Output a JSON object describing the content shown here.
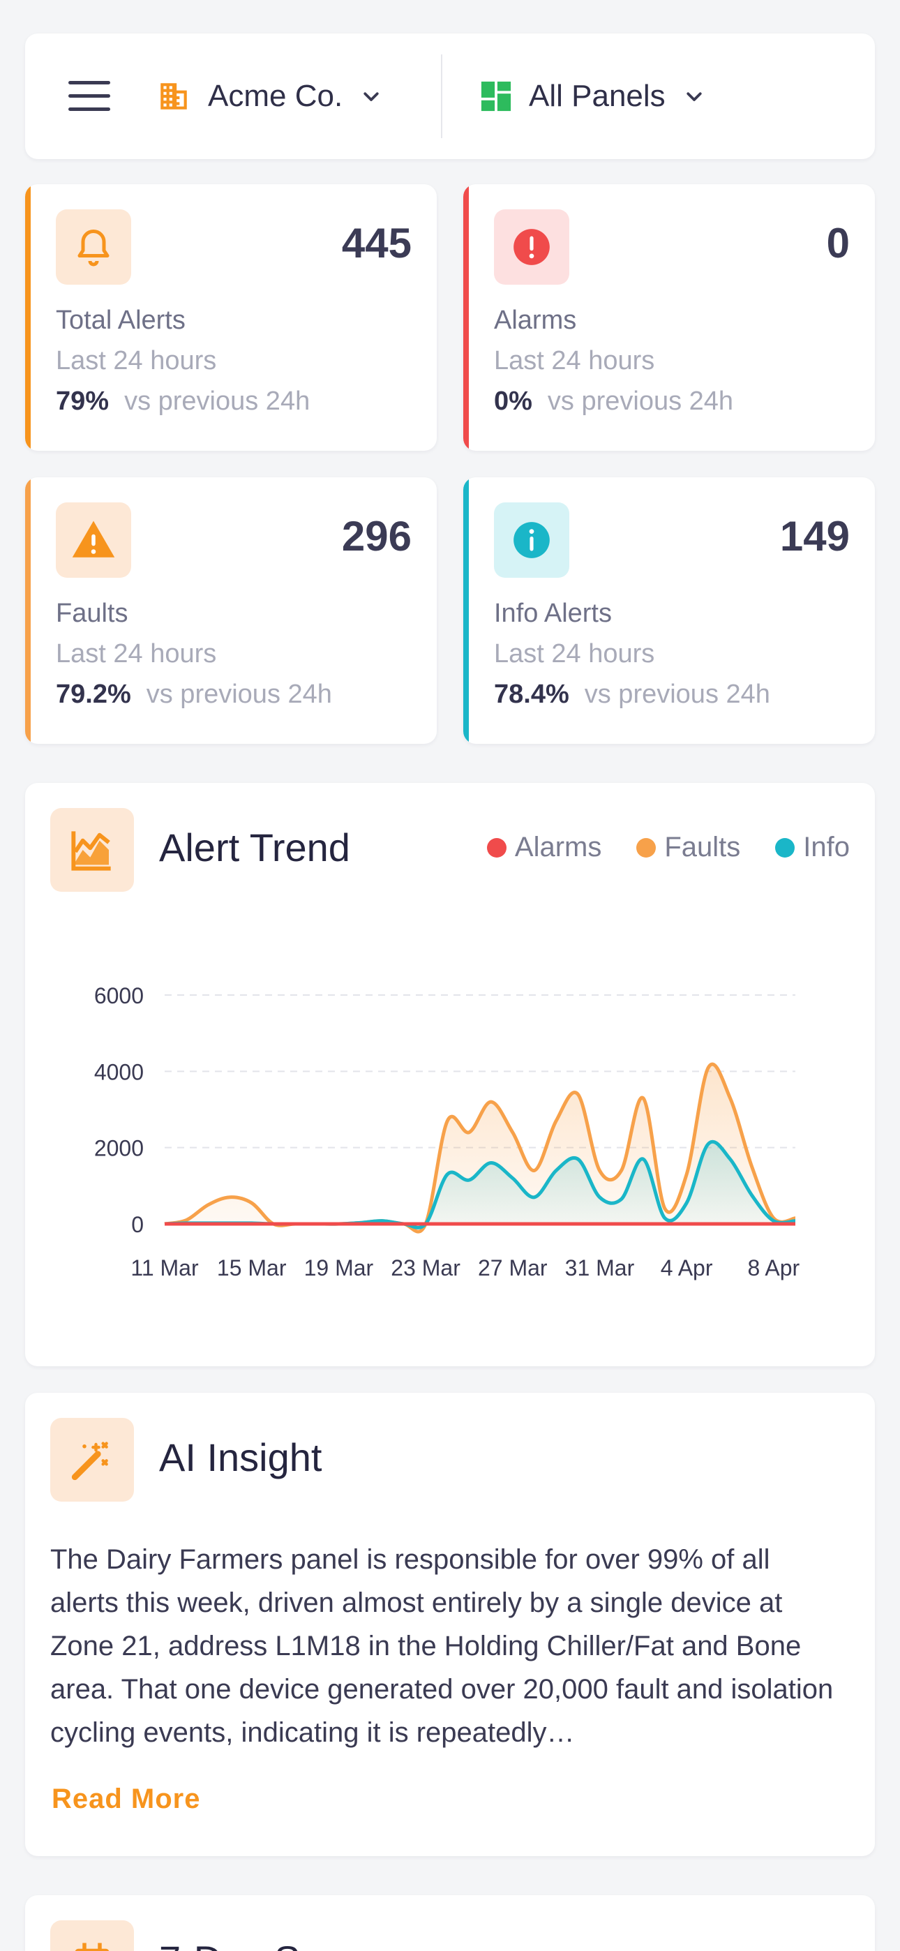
{
  "topbar": {
    "company": "Acme Co.",
    "panels": "All Panels"
  },
  "stats": [
    {
      "value": "445",
      "title": "Total Alerts",
      "period": "Last 24 hours",
      "change": "79%",
      "compare": "vs previous 24h",
      "color": "#f7941d"
    },
    {
      "value": "0",
      "title": "Alarms",
      "period": "Last 24 hours",
      "change": "0%",
      "compare": "vs previous 24h",
      "color": "#f04b4b"
    },
    {
      "value": "296",
      "title": "Faults",
      "period": "Last 24 hours",
      "change": "79.2%",
      "compare": "vs previous 24h",
      "color": "#f7941d"
    },
    {
      "value": "149",
      "title": "Info Alerts",
      "period": "Last 24 hours",
      "change": "78.4%",
      "compare": "vs previous 24h",
      "color": "#1ab6c8"
    }
  ],
  "trend": {
    "title": "Alert Trend",
    "legend": [
      {
        "name": "Alarms",
        "color": "#f04b4b"
      },
      {
        "name": "Faults",
        "color": "#f7a14a"
      },
      {
        "name": "Info",
        "color": "#1ab6c8"
      }
    ]
  },
  "chart_data": {
    "type": "line",
    "title": "Alert Trend",
    "x_tick_labels": [
      "11 Mar",
      "15 Mar",
      "19 Mar",
      "23 Mar",
      "27 Mar",
      "31 Mar",
      "4 Apr",
      "8 Apr"
    ],
    "y_ticks": [
      0,
      2000,
      4000,
      6000
    ],
    "ylim": [
      0,
      6000
    ],
    "grid": true,
    "legend_position": "top-right",
    "x": [
      "11 Mar",
      "12 Mar",
      "13 Mar",
      "14 Mar",
      "15 Mar",
      "16 Mar",
      "17 Mar",
      "18 Mar",
      "19 Mar",
      "20 Mar",
      "21 Mar",
      "22 Mar",
      "23 Mar",
      "24 Mar",
      "25 Mar",
      "26 Mar",
      "27 Mar",
      "28 Mar",
      "29 Mar",
      "30 Mar",
      "31 Mar",
      "1 Apr",
      "2 Apr",
      "3 Apr",
      "4 Apr",
      "5 Apr",
      "6 Apr",
      "7 Apr",
      "8 Apr",
      "9 Apr"
    ],
    "series": [
      {
        "name": "Alarms",
        "color": "#f04b4b",
        "values": [
          0,
          0,
          0,
          0,
          0,
          0,
          0,
          0,
          0,
          0,
          0,
          0,
          0,
          0,
          0,
          0,
          0,
          0,
          0,
          0,
          0,
          0,
          0,
          0,
          0,
          0,
          0,
          0,
          0,
          0
        ]
      },
      {
        "name": "Faults",
        "color": "#f7a14a",
        "values": [
          0,
          100,
          500,
          700,
          550,
          0,
          0,
          0,
          0,
          30,
          80,
          0,
          0,
          2700,
          2400,
          3200,
          2400,
          1400,
          2700,
          3400,
          1400,
          1400,
          3300,
          400,
          1300,
          4100,
          3300,
          1500,
          150,
          150
        ]
      },
      {
        "name": "Info",
        "color": "#1ab6c8",
        "values": [
          0,
          20,
          20,
          20,
          20,
          0,
          0,
          0,
          0,
          30,
          80,
          0,
          0,
          1300,
          1150,
          1600,
          1200,
          700,
          1400,
          1700,
          700,
          650,
          1700,
          150,
          550,
          2100,
          1700,
          750,
          80,
          80
        ]
      }
    ]
  },
  "insight": {
    "title": "AI Insight",
    "text": "The Dairy Farmers panel is responsible for over 99% of all alerts this week, driven almost entirely by a single device at Zone 21, address L1M18 in the Holding Chiller/Fat and Bone area. That one device generated over 20,000 fault and isolation cycling events, indicating it is repeatedly…",
    "read_more": "Read More"
  },
  "next_card": {
    "title": "7-Day S"
  }
}
